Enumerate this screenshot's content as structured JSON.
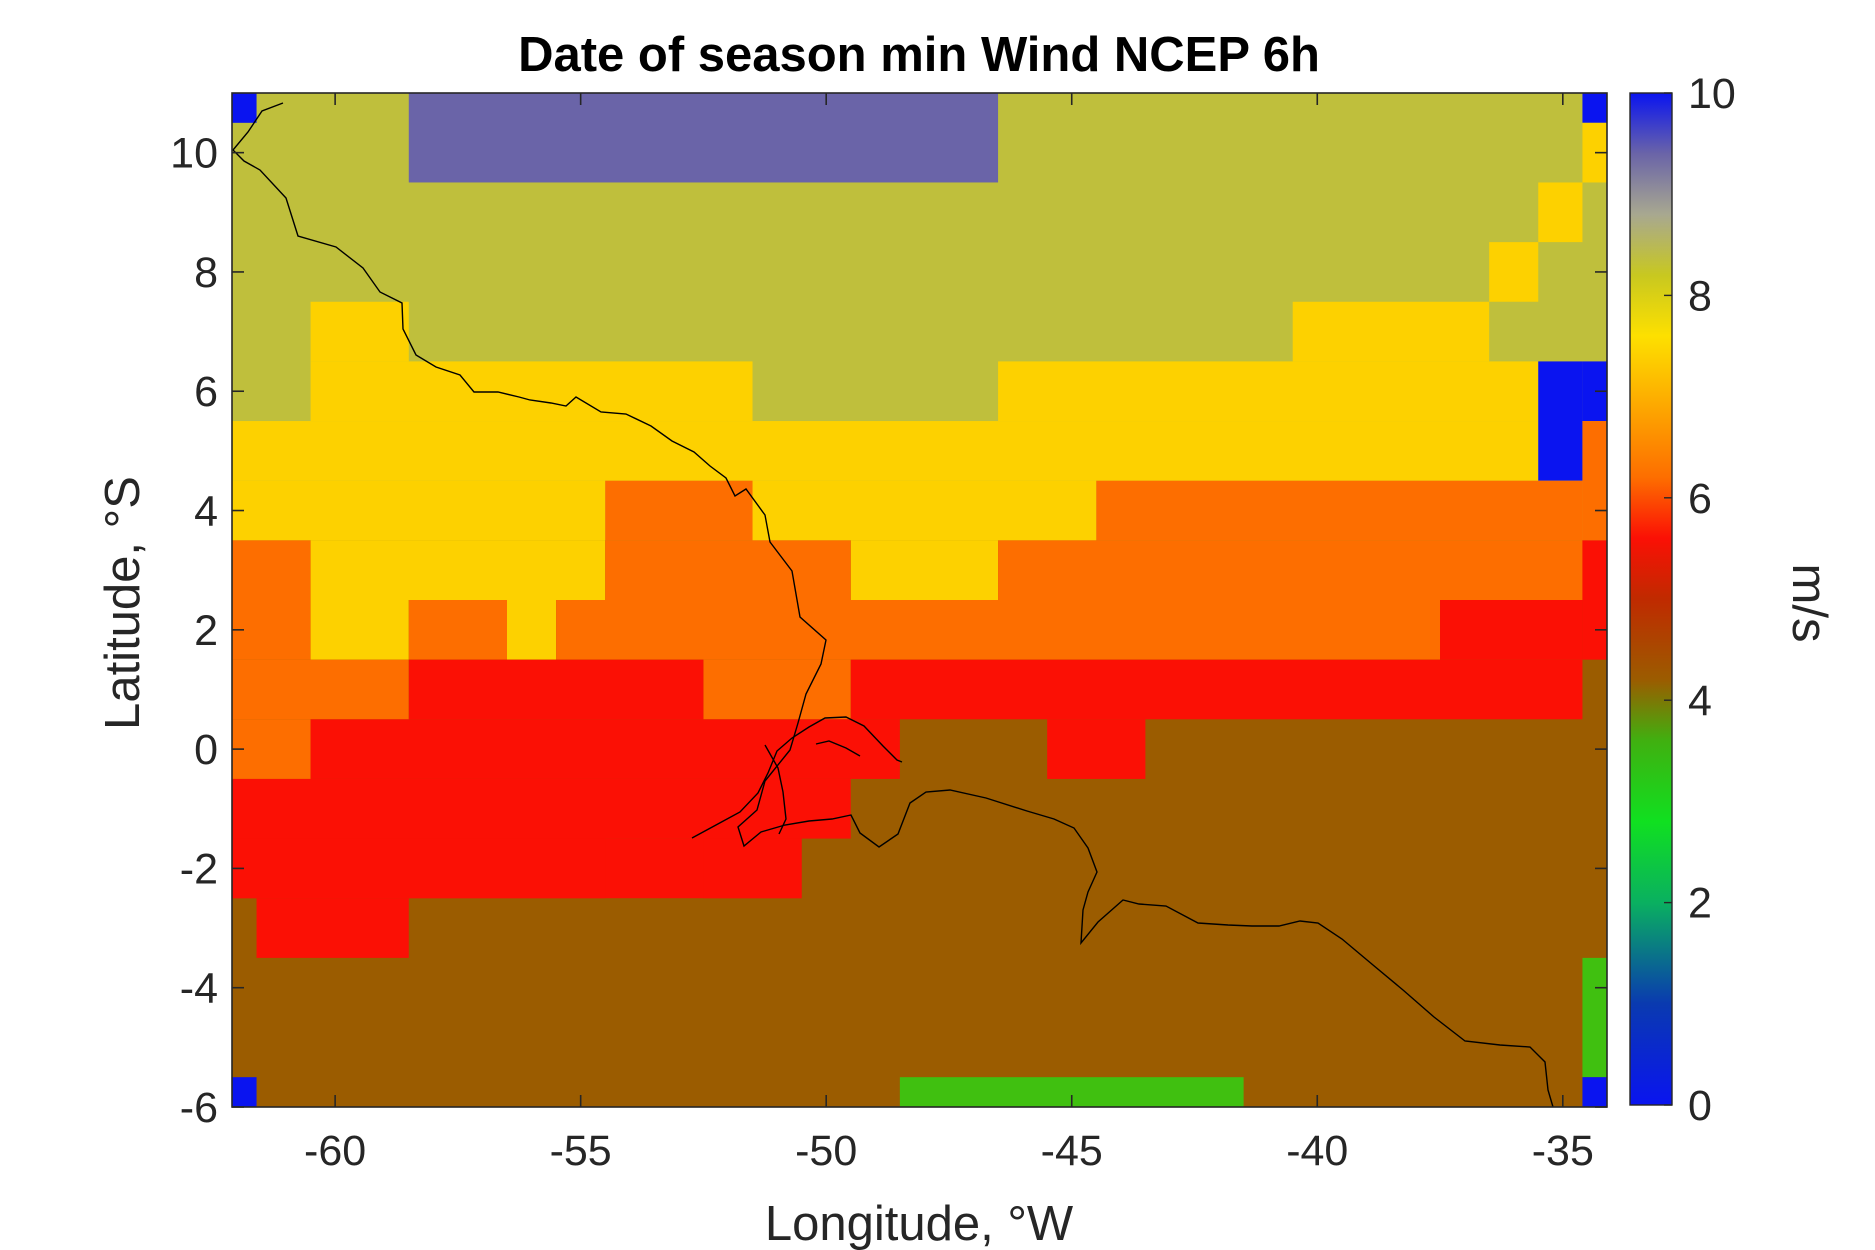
{
  "chart_data": {
    "type": "heatmap",
    "title": "Date of season min Wind NCEP 6h",
    "xlabel": "Longitude, °W",
    "ylabel": "Latitude, °S",
    "xlim": [
      -62.1,
      -34.1
    ],
    "ylim": [
      -6,
      11
    ],
    "xticks": [
      -60,
      -55,
      -50,
      -45,
      -40,
      -35
    ],
    "xtick_labels": [
      "-60",
      "-55",
      "-50",
      "-45",
      "-40",
      "-35"
    ],
    "yticks": [
      -6,
      -4,
      -2,
      0,
      2,
      4,
      6,
      8,
      10
    ],
    "ytick_labels": [
      "-6",
      "-4",
      "-2",
      "0",
      "2",
      "4",
      "6",
      "8",
      "10"
    ],
    "grid": false,
    "colorbar": {
      "label": "m/s",
      "range": [
        0,
        10
      ],
      "ticks": [
        0,
        2,
        4,
        6,
        8,
        10
      ],
      "tick_labels": [
        "0",
        "2",
        "4",
        "6",
        "8",
        "10"
      ],
      "position": "right"
    },
    "cell_size_deg": 1.0,
    "value_colors": {
      "0": "#0a14f0",
      "3.5": "#40c010",
      "4.3": "#9b5c00",
      "5.2": "#fb1005",
      "6.2": "#fd6e00",
      "7.2": "#fdd100",
      "8.1": "#bfbf3c",
      "9.3": "#6a64a8",
      "10": "#0a14f0"
    },
    "region_values": [
      {
        "lon": [
          -62.1,
          -34.1
        ],
        "lat": [
          -6,
          11
        ],
        "value": 8.1
      },
      {
        "lon": [
          -62.1,
          -34.1
        ],
        "lat": [
          -6,
          3.5
        ],
        "value": 4.3
      },
      {
        "lon": [
          -62.1,
          -34.5
        ],
        "lat": [
          -3.5,
          3.5
        ],
        "value": 4.3
      },
      {
        "lon": [
          -58.5,
          -46.5
        ],
        "lat": [
          9.5,
          11
        ],
        "value": 9.3
      },
      {
        "lon": [
          -62.1,
          -61.6
        ],
        "lat": [
          10.5,
          11
        ],
        "value": 10
      },
      {
        "lon": [
          -34.6,
          -34.1
        ],
        "lat": [
          10.5,
          11
        ],
        "value": 10
      },
      {
        "lon": [
          -34.6,
          -34.1
        ],
        "lat": [
          9.5,
          10.5
        ],
        "value": 7.2
      },
      {
        "lon": [
          -35.5,
          -34.6
        ],
        "lat": [
          8.5,
          9.5
        ],
        "value": 7.2
      },
      {
        "lon": [
          -36.5,
          -35.5
        ],
        "lat": [
          7.5,
          8.5
        ],
        "value": 7.2
      },
      {
        "lon": [
          -40.5,
          -36.5
        ],
        "lat": [
          6.5,
          7.5
        ],
        "value": 7.2
      },
      {
        "lon": [
          -60.5,
          -58.5
        ],
        "lat": [
          6.5,
          7.5
        ],
        "value": 7.2
      },
      {
        "lon": [
          -60.5,
          -51.5
        ],
        "lat": [
          5.5,
          6.5
        ],
        "value": 7.2
      },
      {
        "lon": [
          -46.5,
          -35.5
        ],
        "lat": [
          5.5,
          6.5
        ],
        "value": 7.2
      },
      {
        "lon": [
          -62.1,
          -35.5
        ],
        "lat": [
          4.5,
          5.5
        ],
        "value": 7.2
      },
      {
        "lon": [
          -62.1,
          -54.5
        ],
        "lat": [
          3.5,
          4.5
        ],
        "value": 7.2
      },
      {
        "lon": [
          -51.5,
          -44.5
        ],
        "lat": [
          3.5,
          4.5
        ],
        "value": 7.2
      },
      {
        "lon": [
          -60.5,
          -54.5
        ],
        "lat": [
          2.5,
          3.5
        ],
        "value": 7.2
      },
      {
        "lon": [
          -49.5,
          -46.5
        ],
        "lat": [
          2.5,
          3.5
        ],
        "value": 7.2
      },
      {
        "lon": [
          -60.5,
          -58.5
        ],
        "lat": [
          1.5,
          2.5
        ],
        "value": 7.2
      },
      {
        "lon": [
          -56.5,
          -55.5
        ],
        "lat": [
          1.5,
          2.5
        ],
        "value": 7.2
      },
      {
        "lon": [
          -35.5,
          -34.6
        ],
        "lat": [
          4.5,
          6.5
        ],
        "value": 10
      },
      {
        "lon": [
          -34.6,
          -34.1
        ],
        "lat": [
          5.5,
          6.5
        ],
        "value": 10
      },
      {
        "lon": [
          -34.6,
          -34.1
        ],
        "lat": [
          3.5,
          5.5
        ],
        "value": 6.2
      },
      {
        "lon": [
          -54.5,
          -51.5
        ],
        "lat": [
          3.5,
          4.5
        ],
        "value": 6.2
      },
      {
        "lon": [
          -44.5,
          -34.6
        ],
        "lat": [
          3.5,
          4.5
        ],
        "value": 6.2
      },
      {
        "lon": [
          -62.1,
          -60.5
        ],
        "lat": [
          2.5,
          3.5
        ],
        "value": 6.2
      },
      {
        "lon": [
          -54.5,
          -49.5
        ],
        "lat": [
          2.5,
          3.5
        ],
        "value": 6.2
      },
      {
        "lon": [
          -46.5,
          -34.6
        ],
        "lat": [
          2.5,
          3.5
        ],
        "value": 6.2
      },
      {
        "lon": [
          -62.1,
          -60.5
        ],
        "lat": [
          1.5,
          2.5
        ],
        "value": 6.2
      },
      {
        "lon": [
          -58.5,
          -56.5
        ],
        "lat": [
          1.5,
          2.5
        ],
        "value": 6.2
      },
      {
        "lon": [
          -55.5,
          -37.5
        ],
        "lat": [
          1.5,
          2.5
        ],
        "value": 6.2
      },
      {
        "lon": [
          -62.1,
          -58.5
        ],
        "lat": [
          0.5,
          1.5
        ],
        "value": 6.2
      },
      {
        "lon": [
          -52.5,
          -49.5
        ],
        "lat": [
          0.5,
          1.5
        ],
        "value": 6.2
      },
      {
        "lon": [
          -62.1,
          -60.5
        ],
        "lat": [
          -0.5,
          0.5
        ],
        "value": 6.2
      },
      {
        "lon": [
          -34.6,
          -34.1
        ],
        "lat": [
          1.5,
          3.5
        ],
        "value": 5.2
      },
      {
        "lon": [
          -37.5,
          -34.6
        ],
        "lat": [
          1.5,
          2.5
        ],
        "value": 5.2
      },
      {
        "lon": [
          -58.5,
          -52.5
        ],
        "lat": [
          0.5,
          1.5
        ],
        "value": 5.2
      },
      {
        "lon": [
          -49.5,
          -34.6
        ],
        "lat": [
          0.5,
          1.5
        ],
        "value": 5.2
      },
      {
        "lon": [
          -60.5,
          -48.5
        ],
        "lat": [
          -0.5,
          0.5
        ],
        "value": 5.2
      },
      {
        "lon": [
          -45.5,
          -43.5
        ],
        "lat": [
          -0.5,
          0.5
        ],
        "value": 5.2
      },
      {
        "lon": [
          -62.1,
          -49.5
        ],
        "lat": [
          -1.5,
          -0.5
        ],
        "value": 5.2
      },
      {
        "lon": [
          -62.1,
          -50.5
        ],
        "lat": [
          -2.5,
          -1.5
        ],
        "value": 5.2
      },
      {
        "lon": [
          -62.1,
          -54.5
        ],
        "lat": [
          -2.5,
          -1.5
        ],
        "value": 5.2
      },
      {
        "lon": [
          -52.5,
          -50.5
        ],
        "lat": [
          -2.5,
          -1.5
        ],
        "value": 5.2
      },
      {
        "lon": [
          -61.6,
          -58.5
        ],
        "lat": [
          -3.5,
          -2.5
        ],
        "value": 5.2
      },
      {
        "lon": [
          -48.5,
          -41.5
        ],
        "lat": [
          -6,
          -5.5
        ],
        "value": 3.5
      },
      {
        "lon": [
          -34.6,
          -34.1
        ],
        "lat": [
          -5.5,
          -3.5
        ],
        "value": 3.5
      },
      {
        "lon": [
          -62.1,
          -61.6
        ],
        "lat": [
          -6,
          -5.5
        ],
        "value": 0
      },
      {
        "lon": [
          -34.6,
          -34.1
        ],
        "lat": [
          -6,
          -5.5
        ],
        "value": 0
      }
    ]
  }
}
